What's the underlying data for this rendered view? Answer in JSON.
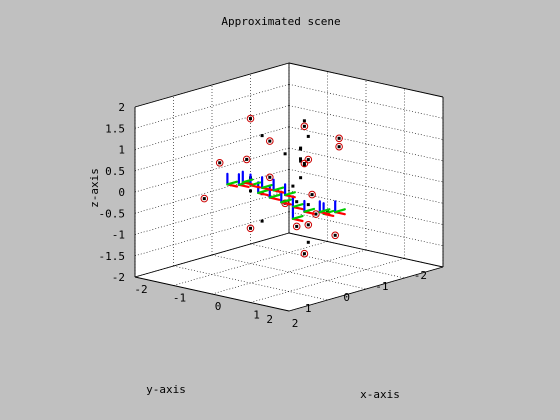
{
  "chart_data": {
    "type": "scatter",
    "projection": "3d",
    "title": "Approximated scene",
    "xlabel": "x-axis",
    "ylabel": "y-axis",
    "zlabel": "z-axis",
    "xlim": [
      -2,
      2
    ],
    "ylim": [
      -2,
      2
    ],
    "zlim": [
      -2,
      2
    ],
    "xticks": [
      "-2",
      "-1",
      "0",
      "1",
      "2"
    ],
    "yticks": [
      "-2",
      "-1",
      "0",
      "1",
      "2"
    ],
    "zticks": [
      "-2",
      "-1.5",
      "-1",
      "-0.5",
      "0",
      "0.5",
      "1",
      "1.5",
      "2"
    ],
    "grid": true,
    "colors": {
      "background": "#c0c0c0",
      "axes_fill": "#ffffff",
      "points": "#000000",
      "circles": "#cc0000",
      "frame_x": "#ff0000",
      "frame_y": "#00cc00",
      "frame_z": "#0000ff"
    },
    "series": [
      {
        "marker": "dot",
        "points": [
          [
            0.1,
            -0.3,
            1.5
          ],
          [
            0.3,
            -0.2,
            1.2
          ],
          [
            0.4,
            0.1,
            1.0
          ],
          [
            0.2,
            0.3,
            0.9
          ],
          [
            -0.2,
            0.5,
            1.3
          ],
          [
            0.8,
            0.5,
            0.9
          ],
          [
            1.0,
            0.7,
            0.6
          ],
          [
            1.1,
            1.0,
            0.5
          ],
          [
            0.9,
            1.2,
            0.4
          ],
          [
            0.6,
            1.3,
            0.3
          ],
          [
            1.3,
            1.1,
            0.2
          ],
          [
            1.4,
            0.9,
            0.1
          ],
          [
            0.0,
            -0.4,
            0.4
          ],
          [
            -0.3,
            -0.6,
            0.7
          ],
          [
            0.9,
            0.6,
            1.0
          ],
          [
            -0.8,
            0.2,
            -0.2
          ],
          [
            -0.6,
            0.4,
            0.2
          ],
          [
            0.7,
            1.4,
            -0.3
          ],
          [
            1.6,
            0.6,
            -0.1
          ],
          [
            0.5,
            0.0,
            -1.2
          ]
        ]
      },
      {
        "marker": "dot-in-circle",
        "points": [
          [
            -1.6,
            -0.5,
            0.2
          ],
          [
            -1.6,
            0.2,
            0.3
          ],
          [
            -1.0,
            -0.5,
            -0.1
          ],
          [
            -1.3,
            0.9,
            -0.3
          ],
          [
            0.2,
            -1.1,
            0.9
          ],
          [
            0.6,
            0.2,
            1.6
          ],
          [
            1.5,
            0.2,
            1.3
          ],
          [
            1.2,
            0.8,
            1.0
          ],
          [
            1.6,
            1.0,
            0.4
          ],
          [
            2.0,
            1.3,
            0.1
          ],
          [
            2.0,
            1.5,
            -0.1
          ],
          [
            1.7,
            1.5,
            -0.2
          ],
          [
            1.0,
            1.1,
            0.1
          ],
          [
            -0.8,
            0.2,
            1.5
          ],
          [
            0.2,
            0.7,
            1.3
          ],
          [
            0.4,
            -0.1,
            0.7
          ],
          [
            0.9,
            1.9,
            -0.3
          ],
          [
            0.1,
            -1.1,
            -1.4
          ],
          [
            1.9,
            1.5,
            -0.8
          ]
        ]
      }
    ],
    "frames": [
      [
        -0.8,
        0.0,
        -0.3
      ],
      [
        -0.5,
        0.0,
        -0.35
      ],
      [
        -0.2,
        0.0,
        -0.4
      ],
      [
        0.1,
        0.0,
        -0.45
      ],
      [
        0.4,
        0.0,
        -0.5
      ],
      [
        0.6,
        0.5,
        -0.5
      ],
      [
        0.9,
        0.0,
        -0.45
      ],
      [
        1.2,
        0.0,
        -0.35
      ],
      [
        1.3,
        0.5,
        -0.2
      ],
      [
        -0.6,
        1.0,
        0.2
      ],
      [
        -0.3,
        1.0,
        0.25
      ],
      [
        0.0,
        1.0,
        0.3
      ],
      [
        0.3,
        1.0,
        0.3
      ],
      [
        0.6,
        1.0,
        0.3
      ],
      [
        -0.7,
        0.5,
        0.1
      ],
      [
        0.9,
        1.0,
        0.25
      ]
    ]
  }
}
